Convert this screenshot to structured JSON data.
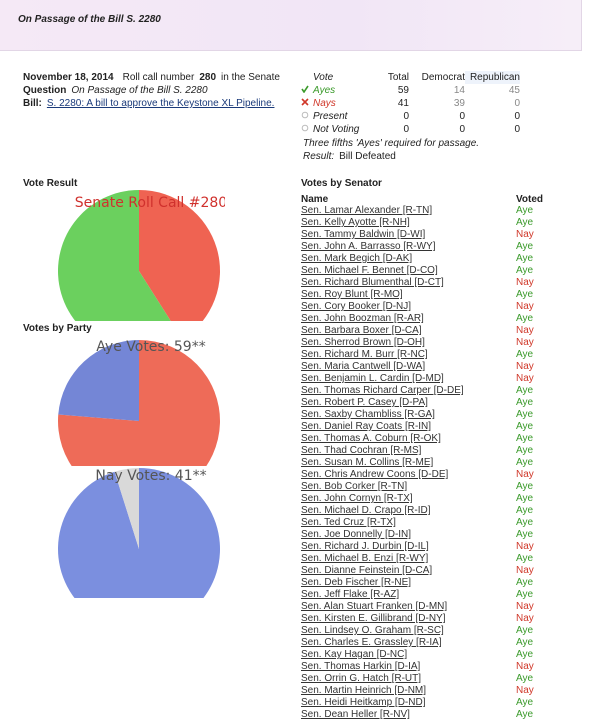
{
  "header": {
    "title": "On Passage of the Bill S. 2280"
  },
  "summary": {
    "date": "November 18, 2014",
    "roll_call_label": "Roll call number",
    "roll_call": "280",
    "roll_call_suffix": "in the Senate",
    "question_label": "Question",
    "question": "On Passage of the Bill S. 2280",
    "bill_label": "Bill:",
    "bill": "S. 2280: A bill to approve the Keystone XL Pipeline."
  },
  "vote_table": {
    "columns": [
      "Vote",
      "Total",
      "Democrat",
      "Republican"
    ],
    "rows": [
      [
        "Ayes",
        "59",
        "14",
        "45"
      ],
      [
        "Nays",
        "41",
        "39",
        "0"
      ],
      [
        "Present",
        "0",
        "0",
        "0"
      ],
      [
        "Not Voting",
        "0",
        "0",
        "0"
      ]
    ],
    "note": "Three fifths 'Ayes' required for passage.",
    "result_label": "Result:",
    "result": "Bill Defeated"
  },
  "vote_result": {
    "heading": "Vote Result",
    "chart": {
      "type": "pie",
      "title": "Senate Roll Call #280",
      "title_color": "#d0312d",
      "values": [
        41,
        59
      ],
      "colors": [
        "#ef6352",
        "#6bd05e"
      ]
    }
  },
  "votes_by_party": {
    "heading": "Votes by Party",
    "charts": [
      {
        "type": "pie",
        "title": "Aye Votes: 59**",
        "title_color": "#555555",
        "values": [
          45,
          14
        ],
        "colors": [
          "#ee6b58",
          "#7486d6"
        ]
      },
      {
        "type": "pie",
        "title": "Nay Votes: 41**",
        "title_color": "#555555",
        "values": [
          39,
          2
        ],
        "colors": [
          "#7b8fdf",
          "#d9d9d9"
        ]
      }
    ]
  },
  "senators": {
    "heading": "Votes by Senator",
    "columns": [
      "Name",
      "Voted"
    ],
    "vote_colors": {
      "Aye": "#3a9a2a",
      "Nay": "#d0382a"
    },
    "rows": [
      [
        "Sen. Lamar Alexander [R-TN]",
        "Aye"
      ],
      [
        "Sen. Kelly Ayotte [R-NH]",
        "Aye"
      ],
      [
        "Sen. Tammy Baldwin [D-WI]",
        "Nay"
      ],
      [
        "Sen. John A. Barrasso [R-WY]",
        "Aye"
      ],
      [
        "Sen. Mark Begich [D-AK]",
        "Aye"
      ],
      [
        "Sen. Michael F. Bennet [D-CO]",
        "Aye"
      ],
      [
        "Sen. Richard Blumenthal [D-CT]",
        "Nay"
      ],
      [
        "Sen. Roy Blunt [R-MO]",
        "Aye"
      ],
      [
        "Sen. Cory Booker [D-NJ]",
        "Nay"
      ],
      [
        "Sen. John Boozman [R-AR]",
        "Aye"
      ],
      [
        "Sen. Barbara Boxer [D-CA]",
        "Nay"
      ],
      [
        "Sen. Sherrod Brown [D-OH]",
        "Nay"
      ],
      [
        "Sen. Richard M. Burr [R-NC]",
        "Aye"
      ],
      [
        "Sen. Maria Cantwell [D-WA]",
        "Nay"
      ],
      [
        "Sen. Benjamin L. Cardin [D-MD]",
        "Nay"
      ],
      [
        "Sen. Thomas Richard Carper [D-DE]",
        "Aye"
      ],
      [
        "Sen. Robert P. Casey [D-PA]",
        "Aye"
      ],
      [
        "Sen. Saxby Chambliss [R-GA]",
        "Aye"
      ],
      [
        "Sen. Daniel Ray Coats [R-IN]",
        "Aye"
      ],
      [
        "Sen. Thomas A. Coburn [R-OK]",
        "Aye"
      ],
      [
        "Sen. Thad Cochran [R-MS]",
        "Aye"
      ],
      [
        "Sen. Susan M. Collins [R-ME]",
        "Aye"
      ],
      [
        "Sen. Chris Andrew Coons [D-DE]",
        "Nay"
      ],
      [
        "Sen. Bob Corker [R-TN]",
        "Aye"
      ],
      [
        "Sen. John Cornyn [R-TX]",
        "Aye"
      ],
      [
        "Sen. Michael D. Crapo [R-ID]",
        "Aye"
      ],
      [
        "Sen. Ted Cruz [R-TX]",
        "Aye"
      ],
      [
        "Sen. Joe Donnelly [D-IN]",
        "Aye"
      ],
      [
        "Sen. Richard J. Durbin [D-IL]",
        "Nay"
      ],
      [
        "Sen. Michael B. Enzi [R-WY]",
        "Aye"
      ],
      [
        "Sen. Dianne Feinstein [D-CA]",
        "Nay"
      ],
      [
        "Sen. Deb Fischer [R-NE]",
        "Aye"
      ],
      [
        "Sen. Jeff Flake [R-AZ]",
        "Aye"
      ],
      [
        "Sen. Alan Stuart Franken [D-MN]",
        "Nay"
      ],
      [
        "Sen. Kirsten E. Gillibrand [D-NY]",
        "Nay"
      ],
      [
        "Sen. Lindsey O. Graham [R-SC]",
        "Aye"
      ],
      [
        "Sen. Charles E. Grassley [R-IA]",
        "Aye"
      ],
      [
        "Sen. Kay Hagan [D-NC]",
        "Aye"
      ],
      [
        "Sen. Thomas Harkin [D-IA]",
        "Nay"
      ],
      [
        "Sen. Orrin G. Hatch [R-UT]",
        "Aye"
      ],
      [
        "Sen. Martin Heinrich [D-NM]",
        "Nay"
      ],
      [
        "Sen. Heidi Heitkamp [D-ND]",
        "Aye"
      ],
      [
        "Sen. Dean Heller [R-NV]",
        "Aye"
      ]
    ]
  }
}
